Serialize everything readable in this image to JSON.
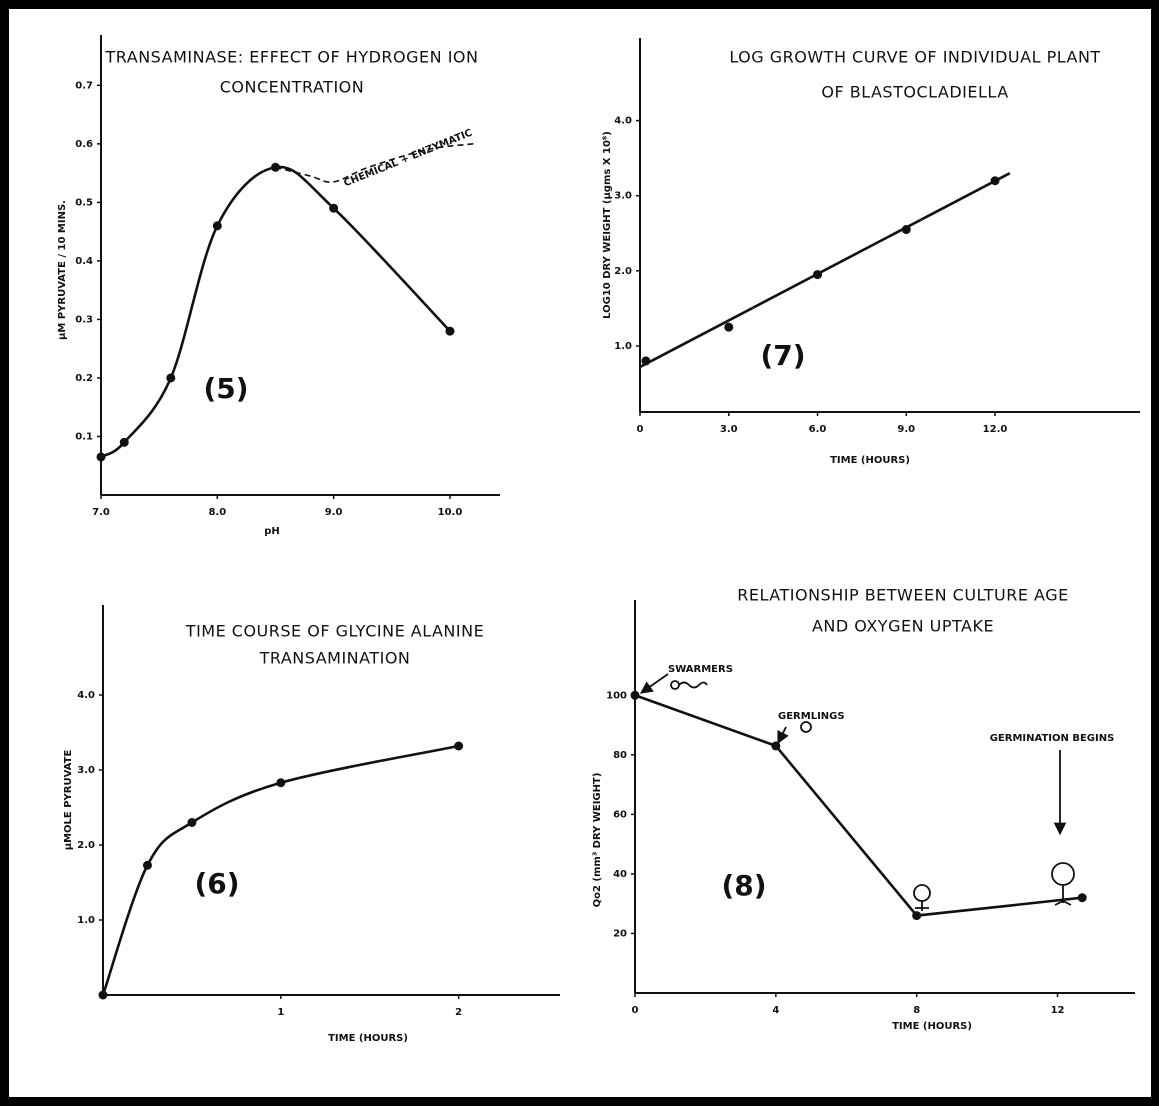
{
  "chart_data": [
    {
      "type": "line",
      "title": [
        "TRANSAMINASE: EFFECT OF HYDROGEN ION",
        "CONCENTRATION"
      ],
      "x_label": "pH",
      "y_label": "µM PYRUVATE / 10 MINS.",
      "xlim": [
        7.0,
        10.43
      ],
      "ylim": [
        0,
        0.786
      ],
      "xticks": [
        {
          "value": 7,
          "label": "7.0"
        },
        {
          "value": 8,
          "label": "8.0"
        },
        {
          "value": 9,
          "label": "9.0"
        },
        {
          "value": 10,
          "label": "10.0"
        }
      ],
      "yticks": [
        0.1,
        0.2,
        0.3,
        0.4,
        0.5,
        0.6,
        0.7
      ],
      "series": [
        {
          "color": "#111111",
          "style": "solid",
          "smooth": true,
          "markers": true,
          "x": [
            7.0,
            7.2,
            7.6,
            8.0,
            8.5,
            9.0,
            10.0
          ],
          "values": [
            0.065,
            0.09,
            0.2,
            0.46,
            0.56,
            0.49,
            0.28
          ]
        },
        {
          "color": "#111111",
          "style": "dashed",
          "smooth": true,
          "markers": false,
          "x": [
            8.5,
            8.8,
            9.0,
            9.3,
            9.8,
            10.2
          ],
          "values": [
            0.56,
            0.545,
            0.535,
            0.56,
            0.59,
            0.6
          ]
        }
      ],
      "annotations": [
        "(5)",
        "CHEMICAL + ENZYMATIC"
      ]
    },
    {
      "type": "line",
      "title": [
        "LOG GROWTH CURVE OF INDIVIDUAL PLANT",
        "OF BLASTOCLADIELLA"
      ],
      "x_label": "TIME (HOURS)",
      "y_label": "LOG10 DRY WEIGHT (µgms X 10⁸)",
      "xlim": [
        0,
        16.9
      ],
      "ylim": [
        0.12,
        5.1
      ],
      "xticks": [
        0,
        {
          "value": 3,
          "label": "3.0"
        },
        {
          "value": 6,
          "label": "6.0"
        },
        {
          "value": 9,
          "label": "9.0"
        },
        {
          "value": 12,
          "label": "12.0"
        }
      ],
      "yticks": [
        {
          "value": 1,
          "label": "1.0"
        },
        {
          "value": 2,
          "label": "2.0"
        },
        {
          "value": 3,
          "label": "3.0"
        },
        {
          "value": 4,
          "label": "4.0"
        }
      ],
      "series": [
        {
          "color": "#111111",
          "style": "none",
          "smooth": false,
          "markers": true,
          "x": [
            0.2,
            3.0,
            6.0,
            9.0,
            12.0
          ],
          "values": [
            0.8,
            1.25,
            1.95,
            2.55,
            3.2
          ]
        },
        {
          "color": "#111111",
          "style": "solid",
          "smooth": false,
          "markers": false,
          "x": [
            0,
            12.5
          ],
          "values": [
            0.72,
            3.3
          ]
        }
      ],
      "annotations": [
        "(7)"
      ]
    },
    {
      "type": "line",
      "title": [
        "TIME COURSE OF GLYCINE ALANINE",
        "TRANSAMINATION"
      ],
      "x_label": "TIME (HOURS)",
      "y_label": "µMOLE PYRUVATE",
      "xlim": [
        0,
        2.57
      ],
      "ylim": [
        0,
        5.2
      ],
      "xticks": [
        1,
        2
      ],
      "yticks": [
        {
          "value": 1,
          "label": "1.0"
        },
        {
          "value": 2,
          "label": "2.0"
        },
        {
          "value": 3,
          "label": "3.0"
        },
        {
          "value": 4,
          "label": "4.0"
        }
      ],
      "series": [
        {
          "color": "#111111",
          "style": "solid",
          "smooth": true,
          "markers": true,
          "x": [
            0,
            0.25,
            0.5,
            1.0,
            2.0
          ],
          "values": [
            0,
            1.73,
            2.3,
            2.83,
            3.32
          ]
        }
      ],
      "annotations": [
        "(6)"
      ]
    },
    {
      "type": "line",
      "title": [
        "RELATIONSHIP BETWEEN CULTURE AGE",
        "AND OXYGEN UPTAKE"
      ],
      "x_label": "TIME (HOURS)",
      "y_label": "Qo2 (mm³ DRY WEIGHT)",
      "xlim": [
        0,
        14.2
      ],
      "ylim": [
        0,
        132
      ],
      "xticks": [
        0,
        4,
        8,
        12
      ],
      "yticks": [
        20,
        40,
        60,
        80,
        100
      ],
      "series": [
        {
          "color": "#111111",
          "style": "solid",
          "smooth": false,
          "markers": true,
          "x": [
            0,
            4,
            8,
            12.7
          ],
          "values": [
            100,
            83,
            26,
            32
          ]
        }
      ],
      "annotations": [
        "(8)",
        "SWARMERS",
        "GERMLINGS",
        "GERMINATION BEGINS"
      ]
    }
  ]
}
